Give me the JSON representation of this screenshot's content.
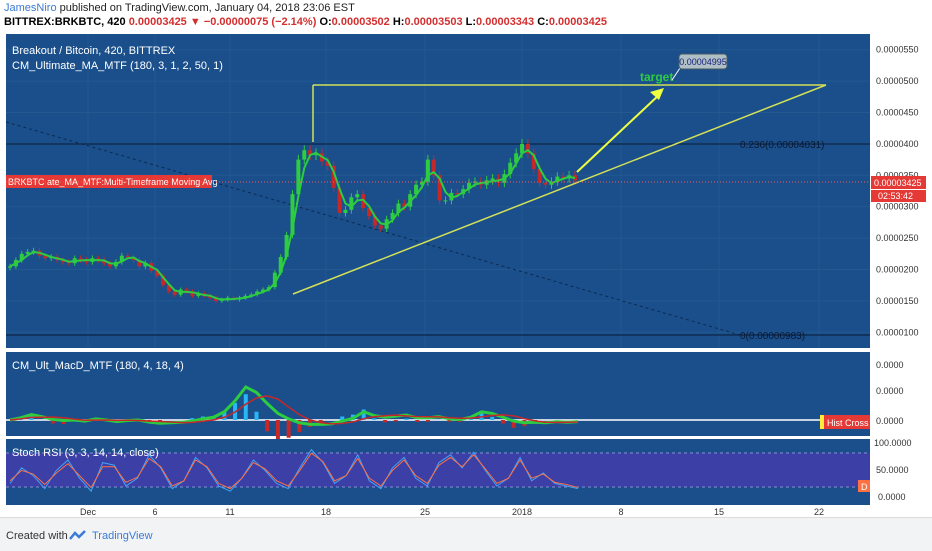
{
  "header": {
    "author": "JamesNiro",
    "published_text": "published on TradingView.com, January 04, 2018 23:06 EST",
    "symbol": "BITTREX:BRKBTC, 420",
    "last": "0.00003425",
    "change_arrow": "▼",
    "change": "−0.00000075 (−2.14%)",
    "o_label": "O:",
    "o": "0.00003502",
    "h_label": "H:",
    "h": "0.00003503",
    "l_label": "L:",
    "l": "0.00003343",
    "c_label": "C:",
    "c": "0.00003425"
  },
  "main_pane": {
    "title": "Breakout / Bitcoin, 420, BITTREX",
    "indicator": "CM_Ultimate_MA_MTF (180, 3, 1, 2, 50, 1)",
    "ma_tag": "BRKBTC ate_MA_MTF:Multi-Timeframe Moving Avg",
    "target_label": "target",
    "target_price": "0.00004995",
    "fib_236": "0.236(0.00004031)",
    "fib_0": "0(0.00000983)",
    "price_tag": "0.00003425",
    "timer_tag": "02:53:42",
    "y_ticks": [
      "0.0000550",
      "0.0000500",
      "0.0000450",
      "0.0000400",
      "0.0000350",
      "0.0000300",
      "0.0000250",
      "0.0000200",
      "0.0000150",
      "0.0000100"
    ]
  },
  "macd_pane": {
    "title": "CM_Ult_MacD_MTF (180, 4, 18, 4)",
    "y_ticks": [
      "0.0000",
      "0.0000",
      "0.0000"
    ],
    "cross_label": "Hist Cross"
  },
  "rsi_pane": {
    "title": "Stoch RSI (3, 3, 14, 14, close)",
    "y_ticks": [
      "100.0000",
      "50.0000",
      "0.0000"
    ],
    "d_label": "D"
  },
  "x_axis": {
    "labels": [
      "Dec",
      "6",
      "11",
      "18",
      "25",
      "2018",
      "8",
      "15",
      "22"
    ]
  },
  "footer": {
    "created_with": "Created with",
    "brand": "TradingView"
  },
  "colors": {
    "pane_bg": "#1a4f8c",
    "rsi_band": "#3b3fa6",
    "trend_line": "#d4e157",
    "arrow": "#eeff41",
    "target_text": "#2ecc40",
    "price_tag_bg": "#e53935",
    "up_candle": "#2ecc40",
    "down_candle": "#c62828"
  },
  "chart_data": [
    {
      "type": "candlestick",
      "title": "Breakout / Bitcoin, 420, BITTREX",
      "x_labels": [
        "Dec",
        "6",
        "11",
        "18",
        "25",
        "2018",
        "8",
        "15",
        "22"
      ],
      "ylim": [
        7.5e-06,
        5.75e-05
      ],
      "series": [
        {
          "name": "BRKBTC",
          "close_path": [
            2.05e-05,
            2.15e-05,
            2.25e-05,
            2.28e-05,
            2.3e-05,
            2.22e-05,
            2.18e-05,
            2.2e-05,
            2.15e-05,
            2.12e-05,
            2.1e-05,
            2.18e-05,
            2.15e-05,
            2.12e-05,
            2.18e-05,
            2.15e-05,
            2.1e-05,
            2.05e-05,
            2.12e-05,
            2.22e-05,
            2.2e-05,
            2.15e-05,
            2.05e-05,
            2.1e-05,
            1.98e-05,
            1.9e-05,
            1.75e-05,
            1.65e-05,
            1.6e-05,
            1.68e-05,
            1.65e-05,
            1.58e-05,
            1.62e-05,
            1.58e-05,
            1.55e-05,
            1.5e-05,
            1.52e-05,
            1.55e-05,
            1.52e-05,
            1.55e-05,
            1.58e-05,
            1.6e-05,
            1.65e-05,
            1.68e-05,
            1.72e-05,
            1.95e-05,
            2.2e-05,
            2.55e-05,
            3.2e-05,
            3.75e-05,
            3.9e-05,
            3.82e-05,
            3.85e-05,
            3.72e-05,
            3.65e-05,
            3.3e-05,
            2.9e-05,
            2.95e-05,
            3.15e-05,
            3.2e-05,
            2.98e-05,
            2.85e-05,
            2.7e-05,
            2.65e-05,
            2.8e-05,
            2.9e-05,
            3.05e-05,
            3e-05,
            3.2e-05,
            3.35e-05,
            3.4e-05,
            3.75e-05,
            3.5e-05,
            3.1e-05,
            3.1e-05,
            3.22e-05,
            3.2e-05,
            3.28e-05,
            3.38e-05,
            3.4e-05,
            3.35e-05,
            3.42e-05,
            3.45e-05,
            3.38e-05,
            3.52e-05,
            3.7e-05,
            3.85e-05,
            4e-05,
            3.85e-05,
            3.6e-05,
            3.38e-05,
            3.35e-05,
            3.4e-05,
            3.48e-05,
            3.45e-05,
            3.5e-05,
            3.42e-05
          ]
        }
      ],
      "annotations": {
        "resistance_price": 4.995e-05,
        "fib_0_236": 4.031e-05,
        "fib_0": 9.83e-06,
        "last_price": 3.425e-05
      }
    },
    {
      "type": "line",
      "title": "CM_Ult_MacD_MTF (180, 4, 18, 4)",
      "series": [
        {
          "name": "MACD",
          "values": [
            0,
            0.4,
            1.0,
            0.6,
            0.1,
            -0.1,
            0,
            -0.2,
            0.2,
            0,
            -0.3,
            -0.1,
            0,
            -0.4,
            -0.6,
            -0.5,
            -0.4,
            -0.2,
            0.2,
            0.5,
            1.5,
            3.5,
            6.0,
            5.0,
            3.0,
            1.2,
            0.2,
            -0.5,
            -0.8,
            -0.8,
            -0.7,
            -0.2,
            0.3,
            1.5,
            0.8,
            0.5,
            0.7,
            0.9,
            0.4,
            0.4,
            0.6,
            0.2,
            0.1,
            0.5,
            1.5,
            1.2,
            0.5,
            -0.2,
            -0.5,
            -0.4,
            -0.5,
            -0.3,
            -0.4,
            -0.3
          ]
        }
      ]
    },
    {
      "type": "line",
      "title": "Stoch RSI (3, 3, 14, 14, close)",
      "ylim": [
        0,
        100
      ],
      "series": [
        {
          "name": "K",
          "values": [
            30,
            60,
            45,
            20,
            55,
            75,
            40,
            15,
            70,
            65,
            25,
            40,
            85,
            60,
            20,
            35,
            80,
            60,
            25,
            15,
            40,
            75,
            55,
            30,
            20,
            60,
            95,
            70,
            30,
            45,
            85,
            35,
            20,
            60,
            80,
            40,
            25,
            70,
            85,
            60,
            90,
            55,
            25,
            40,
            80,
            35,
            50,
            30,
            25,
            20
          ]
        },
        {
          "name": "D",
          "values": [
            35,
            55,
            48,
            28,
            50,
            68,
            45,
            22,
            62,
            62,
            32,
            42,
            78,
            62,
            25,
            35,
            75,
            62,
            30,
            20,
            40,
            70,
            58,
            35,
            25,
            55,
            88,
            72,
            35,
            45,
            78,
            40,
            25,
            55,
            75,
            45,
            30,
            65,
            80,
            62,
            85,
            58,
            30,
            40,
            75,
            40,
            48,
            32,
            28,
            22
          ]
        }
      ]
    }
  ]
}
